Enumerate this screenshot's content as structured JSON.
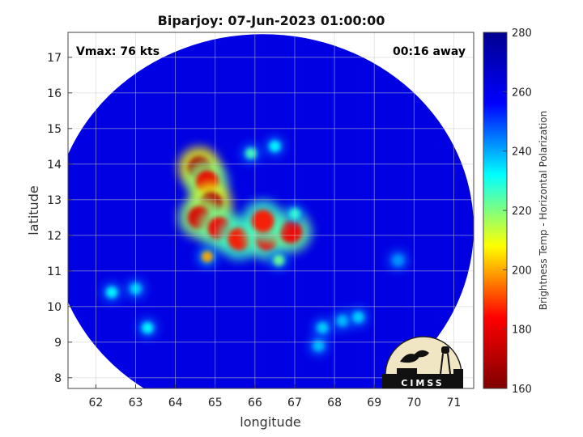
{
  "chart_data": {
    "type": "heatmap",
    "title": "Biparjoy: 07-Jun-2023 01:00:00",
    "xlabel": "longitude",
    "ylabel": "latitude",
    "xlim": [
      61.3,
      71.5
    ],
    "ylim": [
      7.7,
      17.7
    ],
    "xticks": [
      "62",
      "63",
      "64",
      "65",
      "66",
      "67",
      "68",
      "69",
      "70",
      "71"
    ],
    "yticks": [
      "8",
      "9",
      "10",
      "11",
      "12",
      "13",
      "14",
      "15",
      "16",
      "17"
    ],
    "grid": true,
    "annotations": {
      "vmax": "Vmax: 76 kts",
      "away": "00:16 away"
    },
    "colorbar": {
      "label": "Brightness Temp - Horizontal Polarization",
      "range": [
        160,
        280
      ],
      "ticks": [
        "160",
        "180",
        "200",
        "220",
        "240",
        "260",
        "280"
      ],
      "colormap": [
        "#7f0000",
        "#ff0000",
        "#ffff00",
        "#00ffff",
        "#0000ff",
        "#00008f"
      ]
    },
    "field": {
      "background_temp": 262,
      "swath_center": [
        66.2,
        12.2
      ],
      "swath_radius_lon": 5.3,
      "swath_radius_lat": 5.45,
      "features": [
        {
          "lon": 64.6,
          "lat": 13.9,
          "temp": 168
        },
        {
          "lon": 64.8,
          "lat": 13.5,
          "temp": 180
        },
        {
          "lon": 64.9,
          "lat": 12.9,
          "temp": 170
        },
        {
          "lon": 64.6,
          "lat": 12.5,
          "temp": 178
        },
        {
          "lon": 65.1,
          "lat": 12.2,
          "temp": 182
        },
        {
          "lon": 65.6,
          "lat": 11.9,
          "temp": 186
        },
        {
          "lon": 66.3,
          "lat": 11.9,
          "temp": 184
        },
        {
          "lon": 66.9,
          "lat": 12.1,
          "temp": 182
        },
        {
          "lon": 66.2,
          "lat": 12.4,
          "temp": 186
        },
        {
          "lon": 65.9,
          "lat": 14.3,
          "temp": 226
        },
        {
          "lon": 66.5,
          "lat": 14.5,
          "temp": 232
        },
        {
          "lon": 64.8,
          "lat": 11.4,
          "temp": 200
        },
        {
          "lon": 66.6,
          "lat": 11.3,
          "temp": 222
        },
        {
          "lon": 67.0,
          "lat": 12.6,
          "temp": 228
        },
        {
          "lon": 62.4,
          "lat": 10.4,
          "temp": 232
        },
        {
          "lon": 63.0,
          "lat": 10.5,
          "temp": 236
        },
        {
          "lon": 63.3,
          "lat": 9.4,
          "temp": 232
        },
        {
          "lon": 67.7,
          "lat": 9.4,
          "temp": 236
        },
        {
          "lon": 68.2,
          "lat": 9.6,
          "temp": 238
        },
        {
          "lon": 68.6,
          "lat": 9.7,
          "temp": 236
        },
        {
          "lon": 67.6,
          "lat": 8.9,
          "temp": 238
        },
        {
          "lon": 69.6,
          "lat": 11.3,
          "temp": 242
        }
      ]
    }
  },
  "logo": {
    "text": "CIMSS"
  }
}
